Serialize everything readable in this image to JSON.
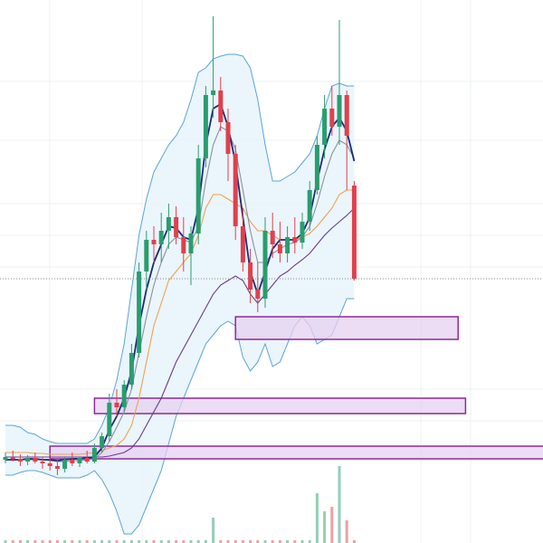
{
  "chart_data": {
    "type": "candlestick",
    "ylim": [
      0,
      600
    ],
    "up_color": "#2a9d6f",
    "down_color": "#e0404c",
    "open": [
      92,
      95,
      93,
      90,
      94,
      90,
      88,
      85,
      82,
      92,
      88,
      94,
      90,
      105,
      118,
      155,
      150,
      175,
      210,
      300,
      335,
      330,
      345,
      360,
      338,
      320,
      342,
      425,
      495,
      500,
      465,
      430,
      350,
      310,
      280,
      270,
      345,
      330,
      320,
      338,
      332,
      355,
      390,
      440,
      480,
      460,
      495,
      395
    ],
    "high": [
      100,
      102,
      98,
      97,
      100,
      95,
      94,
      92,
      95,
      100,
      95,
      102,
      110,
      122,
      165,
      170,
      180,
      220,
      310,
      345,
      350,
      365,
      375,
      372,
      360,
      350,
      440,
      505,
      582,
      515,
      480,
      440,
      370,
      325,
      310,
      360,
      365,
      355,
      350,
      360,
      365,
      400,
      450,
      495,
      505,
      578,
      500,
      400
    ],
    "low": [
      88,
      90,
      85,
      86,
      88,
      82,
      80,
      75,
      78,
      85,
      84,
      88,
      88,
      100,
      112,
      140,
      145,
      170,
      205,
      280,
      310,
      310,
      325,
      330,
      300,
      285,
      330,
      415,
      470,
      455,
      400,
      335,
      300,
      265,
      255,
      260,
      315,
      310,
      310,
      320,
      325,
      345,
      385,
      425,
      450,
      440,
      390,
      290
    ],
    "close": [
      95,
      93,
      90,
      94,
      90,
      88,
      85,
      82,
      92,
      88,
      94,
      90,
      105,
      118,
      155,
      150,
      175,
      210,
      300,
      335,
      330,
      345,
      360,
      338,
      320,
      342,
      425,
      495,
      500,
      465,
      430,
      350,
      310,
      280,
      270,
      345,
      330,
      320,
      338,
      332,
      355,
      390,
      440,
      480,
      460,
      495,
      450,
      292
    ],
    "bands": {
      "color": "#5aa6d6",
      "fill": "#e6f3fb",
      "upper": [
        130,
        130,
        128,
        122,
        120,
        115,
        112,
        110,
        110,
        110,
        110,
        110,
        115,
        130,
        150,
        180,
        220,
        280,
        340,
        380,
        410,
        425,
        440,
        450,
        465,
        490,
        520,
        525,
        535,
        538,
        540,
        540,
        538,
        525,
        490,
        440,
        400,
        400,
        405,
        410,
        420,
        430,
        450,
        480,
        505,
        508,
        505,
        505
      ],
      "lower": [
        75,
        75,
        78,
        80,
        80,
        78,
        75,
        72,
        72,
        72,
        72,
        75,
        80,
        70,
        55,
        35,
        10,
        10,
        20,
        40,
        60,
        80,
        110,
        140,
        160,
        180,
        200,
        220,
        230,
        240,
        245,
        240,
        205,
        190,
        200,
        220,
        195,
        200,
        220,
        240,
        250,
        240,
        220,
        225,
        230,
        250,
        270,
        270
      ]
    },
    "lines": [
      {
        "color": "#f0a050",
        "values": [
          100,
          100,
          100,
          100,
          99,
          99,
          98,
          98,
          98,
          98,
          98,
          99,
          100,
          102,
          105,
          108,
          115,
          130,
          160,
          200,
          240,
          265,
          290,
          300,
          310,
          320,
          340,
          370,
          385,
          385,
          380,
          375,
          370,
          355,
          345,
          345,
          340,
          335,
          335,
          335,
          338,
          342,
          350,
          360,
          370,
          385,
          390,
          390
        ]
      },
      {
        "color": "#6b3a8c",
        "values": [
          95,
          95,
          95,
          95,
          95,
          95,
          95,
          95,
          95,
          95,
          95,
          95,
          95,
          95,
          96,
          98,
          100,
          105,
          115,
          130,
          145,
          160,
          180,
          200,
          215,
          230,
          245,
          260,
          275,
          285,
          290,
          295,
          290,
          275,
          265,
          275,
          285,
          295,
          300,
          307,
          313,
          320,
          330,
          340,
          348,
          355,
          362,
          370
        ]
      },
      {
        "color": "#8c919c",
        "values": [
          92,
          92,
          92,
          92,
          92,
          92,
          91,
          90,
          90,
          91,
          91,
          92,
          93,
          100,
          112,
          128,
          145,
          170,
          210,
          250,
          285,
          310,
          330,
          338,
          335,
          332,
          350,
          400,
          440,
          460,
          455,
          435,
          390,
          345,
          310,
          310,
          320,
          325,
          330,
          332,
          338,
          350,
          375,
          405,
          430,
          445,
          440,
          425
        ]
      },
      {
        "color": "#1c2a78",
        "values": [
          92,
          92,
          92,
          93,
          93,
          92,
          92,
          91,
          92,
          93,
          93,
          94,
          95,
          105,
          125,
          140,
          160,
          190,
          240,
          280,
          310,
          330,
          350,
          348,
          338,
          335,
          370,
          440,
          480,
          485,
          460,
          420,
          360,
          300,
          275,
          300,
          325,
          335,
          335,
          335,
          342,
          360,
          400,
          435,
          460,
          470,
          455,
          422
        ]
      }
    ],
    "volume": [
      3,
      3,
      3,
      3,
      3,
      3,
      3,
      3,
      3,
      3,
      3,
      3,
      3,
      3,
      3,
      3,
      3,
      3,
      3,
      3,
      3,
      3,
      3,
      3,
      3,
      3,
      3,
      3,
      28,
      3,
      3,
      3,
      3,
      3,
      3,
      3,
      3,
      3,
      3,
      3,
      3,
      3,
      55,
      35,
      40,
      85,
      25,
      3
    ],
    "zone_color": "#e6d0f0",
    "zone_border": "#8c2a9c",
    "zones": [
      {
        "low": 225,
        "high": 250,
        "start": 31,
        "end": 61
      },
      {
        "low": 143,
        "high": 160,
        "start": 12,
        "end": 62
      },
      {
        "low": 93,
        "high": 107,
        "start": 6,
        "end": 73
      }
    ],
    "last_price_line": true
  }
}
